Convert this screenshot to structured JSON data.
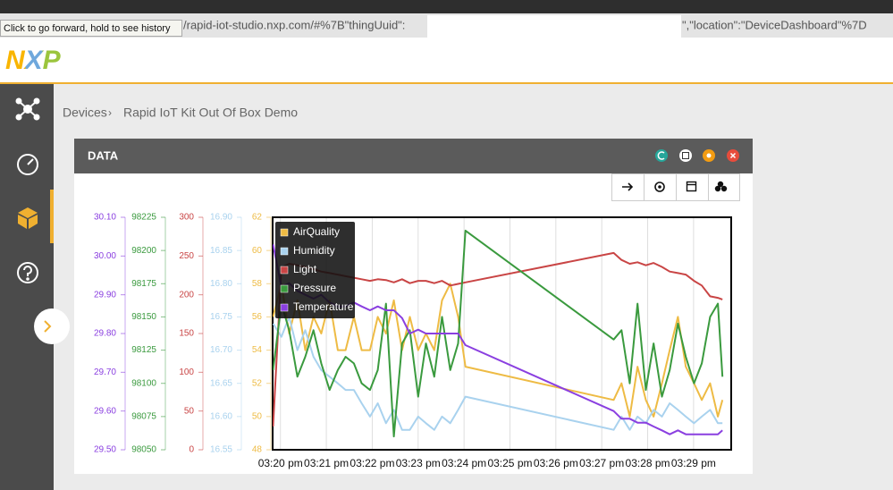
{
  "browser": {
    "url_prefix": "/rapid-iot-studio.nxp.com/#%7B\"thingUuid\":",
    "url_suffix": "\",\"location\":\"DeviceDashboard\"%7D",
    "tooltip": "Click to go forward, hold to see history"
  },
  "header": {
    "logo": "NXP"
  },
  "breadcrumb": {
    "items": [
      "Devices",
      "Rapid IoT Kit Out Of Box Demo"
    ],
    "separator": "›"
  },
  "panel": {
    "title": "DATA"
  },
  "chart_data": {
    "type": "line",
    "x": [
      -0.16,
      0.02,
      0.19,
      0.37,
      0.54,
      0.72,
      0.89,
      1.07,
      1.25,
      1.42,
      1.6,
      1.77,
      1.95,
      2.12,
      2.3,
      2.47,
      2.65,
      2.82,
      3.0,
      3.17,
      3.35,
      3.52,
      3.7,
      3.87,
      4.03,
      7.26,
      7.43,
      7.61,
      7.78,
      7.96,
      8.13,
      8.31,
      8.48,
      8.66,
      8.83,
      9.01,
      9.18,
      9.36,
      9.53,
      9.63
    ],
    "xlim": [
      -0.17,
      9.82
    ],
    "xticks": [
      {
        "value": 0,
        "label": "03:20 pm"
      },
      {
        "value": 1,
        "label": "03:21 pm"
      },
      {
        "value": 2,
        "label": "03:22 pm"
      },
      {
        "value": 3,
        "label": "03:23 pm"
      },
      {
        "value": 4,
        "label": "03:24 pm"
      },
      {
        "value": 5,
        "label": "03:25 pm"
      },
      {
        "value": 6,
        "label": "03:26 pm"
      },
      {
        "value": 7,
        "label": "03:27 pm"
      },
      {
        "value": 8,
        "label": "03:28 pm"
      },
      {
        "value": 9,
        "label": "03:29 pm"
      }
    ],
    "grid": true,
    "legend": "top-left",
    "series": [
      {
        "name": "AirQuality",
        "color": "#eebb44",
        "ylim": [
          48,
          62
        ],
        "yticks": [
          48,
          50,
          52,
          54,
          56,
          58,
          60,
          62
        ],
        "values": [
          56,
          58,
          55,
          57,
          54,
          56,
          55,
          57,
          54,
          54,
          56,
          54,
          54,
          56,
          55,
          57,
          54,
          56,
          54,
          55,
          54,
          57,
          58,
          56,
          53,
          51,
          52,
          50,
          53,
          51,
          50,
          52,
          54,
          56,
          53,
          52,
          51,
          52,
          50,
          51
        ]
      },
      {
        "name": "Humidity",
        "color": "#a9d2ee",
        "ylim": [
          16.55,
          16.9
        ],
        "yticks": [
          16.55,
          {
            "value": 16.6,
            "label": "16.60"
          },
          16.65,
          {
            "value": 16.7,
            "label": "16.70"
          },
          16.75,
          {
            "value": 16.8,
            "label": "16.80"
          },
          16.85,
          {
            "value": 16.9,
            "label": "16.90"
          }
        ],
        "values": [
          16.74,
          16.72,
          16.75,
          16.7,
          16.73,
          16.69,
          16.67,
          16.66,
          16.65,
          16.64,
          16.64,
          16.62,
          16.6,
          16.62,
          16.59,
          16.61,
          16.58,
          16.58,
          16.6,
          16.59,
          16.58,
          16.6,
          16.59,
          16.61,
          16.63,
          16.58,
          16.6,
          16.58,
          16.6,
          16.59,
          16.61,
          16.6,
          16.62,
          16.61,
          16.6,
          16.59,
          16.6,
          16.61,
          16.59,
          16.59
        ]
      },
      {
        "name": "Light",
        "color": "#c94545",
        "ylim": [
          0,
          300
        ],
        "yticks": [
          0,
          50,
          100,
          150,
          200,
          250,
          300
        ],
        "values": [
          30,
          235,
          240,
          238,
          236,
          233,
          230,
          228,
          226,
          224,
          222,
          220,
          218,
          220,
          219,
          216,
          220,
          215,
          218,
          218,
          215,
          218,
          212,
          214,
          216,
          254,
          245,
          240,
          242,
          238,
          241,
          236,
          230,
          228,
          226,
          218,
          212,
          198,
          196,
          194
        ]
      },
      {
        "name": "Pressure",
        "color": "#3a9a3e",
        "ylim": [
          98050,
          98225
        ],
        "yticks": [
          98050,
          98075,
          98100,
          98125,
          98150,
          98175,
          98200,
          98225
        ],
        "values": [
          98110,
          98160,
          98140,
          98105,
          98120,
          98140,
          98115,
          98095,
          98110,
          98120,
          98115,
          98100,
          98095,
          98110,
          98160,
          98060,
          98130,
          98140,
          98090,
          98130,
          98105,
          98150,
          98110,
          98130,
          98215,
          98133,
          98140,
          98100,
          98160,
          98095,
          98130,
          98090,
          98110,
          98145,
          98120,
          98100,
          98115,
          98150,
          98160,
          98105
        ]
      },
      {
        "name": "Temperature",
        "color": "#8a3fe0",
        "ylim": [
          29.5,
          30.1
        ],
        "yticks": [
          {
            "value": 29.5,
            "label": "29.50"
          },
          {
            "value": 29.6,
            "label": "29.60"
          },
          {
            "value": 29.7,
            "label": "29.70"
          },
          {
            "value": 29.8,
            "label": "29.80"
          },
          {
            "value": 29.9,
            "label": "29.90"
          },
          {
            "value": 30.0,
            "label": "30.00"
          },
          {
            "value": 30.1,
            "label": "30.10"
          }
        ],
        "values": [
          30.03,
          29.92,
          29.93,
          29.91,
          29.9,
          29.89,
          29.9,
          29.88,
          29.87,
          29.87,
          29.88,
          29.87,
          29.86,
          29.87,
          29.86,
          29.86,
          29.84,
          29.8,
          29.81,
          29.8,
          29.8,
          29.8,
          29.8,
          29.8,
          29.77,
          29.6,
          29.58,
          29.58,
          29.57,
          29.57,
          29.56,
          29.55,
          29.54,
          29.55,
          29.54,
          29.54,
          29.54,
          29.54,
          29.54,
          29.55
        ]
      }
    ]
  }
}
